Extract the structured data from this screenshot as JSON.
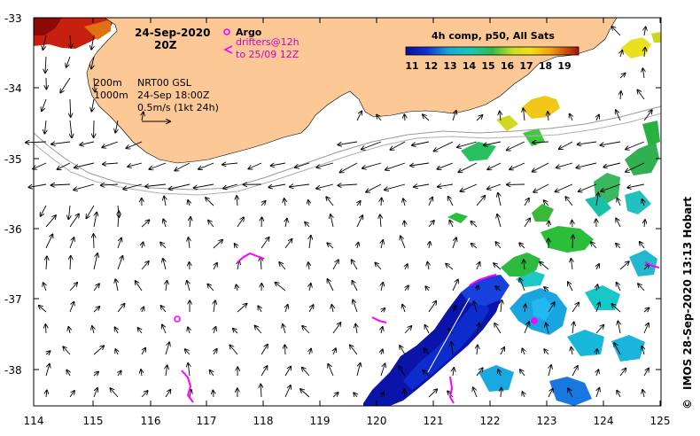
{
  "header": {
    "date": "24-Sep-2020",
    "hour": "20Z",
    "argo_label": "Argo",
    "drifter_line1": "drifters@12h",
    "drifter_line2": "to 25/09 12Z",
    "contour_200": "200m",
    "contour_1000": "1000m",
    "product": "NRT00 GSL",
    "product_time": "24-Sep 18:00Z",
    "vector_scale": "0.5m/s (1kt 24h)"
  },
  "colorbar": {
    "title": "4h comp, p50, All Sats",
    "ticks": [
      "11",
      "12",
      "13",
      "14",
      "15",
      "16",
      "17",
      "18",
      "19"
    ]
  },
  "axes": {
    "lon_ticks": [
      "114",
      "115",
      "116",
      "117",
      "118",
      "119",
      "120",
      "121",
      "122",
      "123",
      "124",
      "125"
    ],
    "lat_ticks": [
      "-33",
      "-34",
      "-35",
      "-36",
      "-37",
      "-38"
    ]
  },
  "credit": "IMOS 28-Sep-2020 13:13 Hobart",
  "copyright": "©",
  "colors": {
    "land": "#fbc896",
    "argo": "#ff00ff",
    "drifter": "#ff00ff",
    "contour": "#9a9a9a"
  },
  "markers": {
    "argo_floats": [
      {
        "lon": 116.5,
        "lat": -37.28
      },
      {
        "lon": 122.75,
        "lat": -37.3
      }
    ]
  }
}
